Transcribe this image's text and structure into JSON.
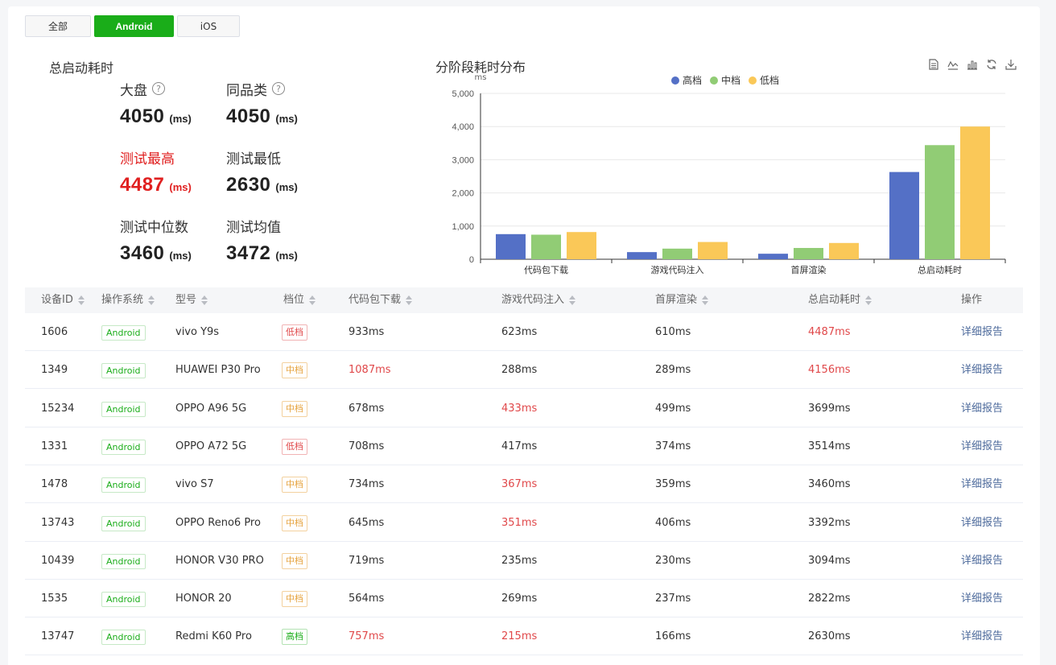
{
  "filters": [
    {
      "label": "全部",
      "active": false
    },
    {
      "label": "Android",
      "active": true
    },
    {
      "label": "iOS",
      "active": false
    }
  ],
  "summary": {
    "title": "总启动耗时",
    "unit": "(ms)",
    "stats": [
      {
        "label": "大盘",
        "value": "4050",
        "help": true,
        "red": false
      },
      {
        "label": "同品类",
        "value": "4050",
        "help": true,
        "red": false
      },
      {
        "label": "测试最高",
        "value": "4487",
        "help": false,
        "red": true
      },
      {
        "label": "测试最低",
        "value": "2630",
        "help": false,
        "red": false
      },
      {
        "label": "测试中位数",
        "value": "3460",
        "help": false,
        "red": false
      },
      {
        "label": "测试均值",
        "value": "3472",
        "help": false,
        "red": false
      }
    ]
  },
  "chart_title": "分阶段耗时分布",
  "toolbox": [
    "data-view-icon",
    "line-chart-icon",
    "bar-chart-icon",
    "refresh-icon",
    "download-icon"
  ],
  "chart_data": {
    "type": "bar",
    "ylabel": "ms",
    "ylim": [
      0,
      5000
    ],
    "yticks": [
      "0",
      "1,000",
      "2,000",
      "3,000",
      "4,000",
      "5,000"
    ],
    "categories": [
      "代码包下载",
      "游戏代码注入",
      "首屏渲染",
      "总启动耗时"
    ],
    "series": [
      {
        "name": "高档",
        "color": "#5470c6",
        "values": [
          757,
          215,
          166,
          2630
        ]
      },
      {
        "name": "中档",
        "color": "#91cc75",
        "values": [
          740,
          320,
          340,
          3440
        ]
      },
      {
        "name": "低档",
        "color": "#fac858",
        "values": [
          820,
          520,
          490,
          4000
        ]
      }
    ],
    "grid": true,
    "legend": "top-center"
  },
  "table": {
    "columns": [
      {
        "label": "设备ID",
        "sortable": true
      },
      {
        "label": "操作系统",
        "sortable": true
      },
      {
        "label": "型号",
        "sortable": true
      },
      {
        "label": "档位",
        "sortable": true
      },
      {
        "label": "代码包下载",
        "sortable": true
      },
      {
        "label": "游戏代码注入",
        "sortable": true
      },
      {
        "label": "首屏渲染",
        "sortable": true
      },
      {
        "label": "总启动耗时",
        "sortable": true
      },
      {
        "label": "操作",
        "sortable": false
      }
    ],
    "action_label": "详细报告",
    "rows": [
      {
        "id": "1606",
        "os": "Android",
        "model": "vivo Y9s",
        "level": "低档",
        "level_kind": "low",
        "download": "933ms",
        "inject": "623ms",
        "render": "610ms",
        "total": "4487ms",
        "red": [
          "total"
        ]
      },
      {
        "id": "1349",
        "os": "Android",
        "model": "HUAWEI P30 Pro",
        "level": "中档",
        "level_kind": "mid",
        "download": "1087ms",
        "inject": "288ms",
        "render": "289ms",
        "total": "4156ms",
        "red": [
          "download",
          "total"
        ]
      },
      {
        "id": "15234",
        "os": "Android",
        "model": "OPPO A96 5G",
        "level": "中档",
        "level_kind": "mid",
        "download": "678ms",
        "inject": "433ms",
        "render": "499ms",
        "total": "3699ms",
        "red": [
          "inject"
        ]
      },
      {
        "id": "1331",
        "os": "Android",
        "model": "OPPO A72 5G",
        "level": "低档",
        "level_kind": "low",
        "download": "708ms",
        "inject": "417ms",
        "render": "374ms",
        "total": "3514ms",
        "red": []
      },
      {
        "id": "1478",
        "os": "Android",
        "model": "vivo S7",
        "level": "中档",
        "level_kind": "mid",
        "download": "734ms",
        "inject": "367ms",
        "render": "359ms",
        "total": "3460ms",
        "red": [
          "inject"
        ]
      },
      {
        "id": "13743",
        "os": "Android",
        "model": "OPPO Reno6 Pro",
        "level": "中档",
        "level_kind": "mid",
        "download": "645ms",
        "inject": "351ms",
        "render": "406ms",
        "total": "3392ms",
        "red": [
          "inject"
        ]
      },
      {
        "id": "10439",
        "os": "Android",
        "model": "HONOR V30 PRO",
        "level": "中档",
        "level_kind": "mid",
        "download": "719ms",
        "inject": "235ms",
        "render": "230ms",
        "total": "3094ms",
        "red": []
      },
      {
        "id": "1535",
        "os": "Android",
        "model": "HONOR 20",
        "level": "中档",
        "level_kind": "mid",
        "download": "564ms",
        "inject": "269ms",
        "render": "237ms",
        "total": "2822ms",
        "red": []
      },
      {
        "id": "13747",
        "os": "Android",
        "model": "Redmi K60 Pro",
        "level": "高档",
        "level_kind": "high",
        "download": "757ms",
        "inject": "215ms",
        "render": "166ms",
        "total": "2630ms",
        "red": [
          "download",
          "inject"
        ]
      }
    ]
  }
}
